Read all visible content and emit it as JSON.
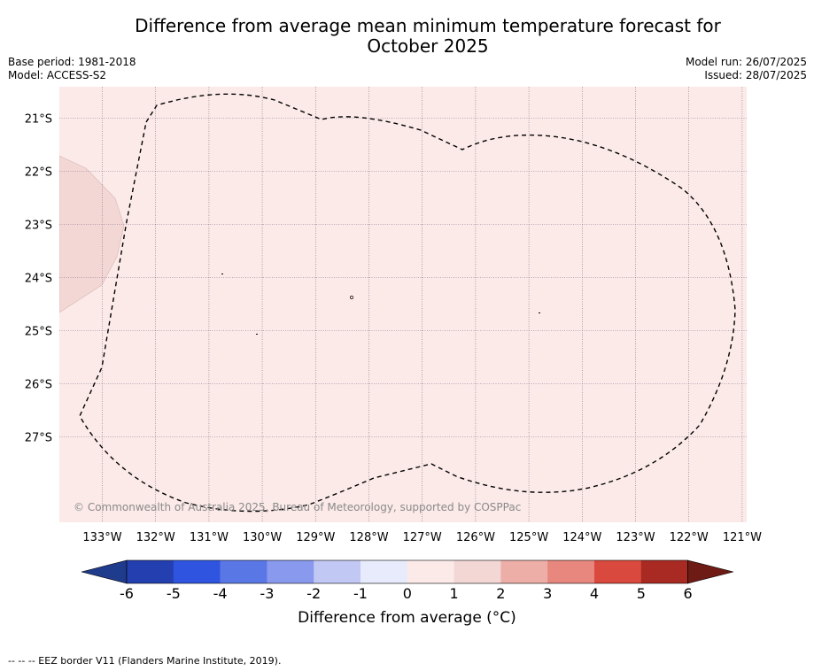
{
  "title": {
    "line1": "Difference from average mean minimum temperature forecast for",
    "line2": "October 2025"
  },
  "meta_left": {
    "base_period": "Base period: 1981-2018",
    "model": "Model: ACCESS-S2"
  },
  "meta_right": {
    "model_run": "Model run: 26/07/2025",
    "issued": "Issued: 28/07/2025"
  },
  "map": {
    "lat_labels": [
      "21°S",
      "22°S",
      "23°S",
      "24°S",
      "25°S",
      "26°S",
      "27°S"
    ],
    "lon_labels": [
      "133°W",
      "132°W",
      "131°W",
      "130°W",
      "129°W",
      "128°W",
      "127°W",
      "126°W",
      "125°W",
      "124°W",
      "123°W",
      "122°W",
      "121°W"
    ],
    "background_color": "#fbeae8",
    "patch_color": "#f2d7d5",
    "copyright": "© Commonwealth of Australia 2025, Bureau of Meteorology, supported by COSPPac"
  },
  "colorbar": {
    "ticks": [
      "-6",
      "-5",
      "-4",
      "-3",
      "-2",
      "-1",
      "0",
      "1",
      "2",
      "3",
      "4",
      "5",
      "6"
    ],
    "colors": [
      "#1f3b8c",
      "#233fb0",
      "#2f55e0",
      "#5a77e6",
      "#8899ee",
      "#c2c8f4",
      "#e8ebfb",
      "#fbeae8",
      "#f2d7d5",
      "#edaea8",
      "#e8877e",
      "#d9493d",
      "#a82a22",
      "#6e1a15"
    ],
    "label": "Difference from average (°C)"
  },
  "footer": "-- -- -- EEZ border V11 (Flanders Marine Institute, 2019)."
}
